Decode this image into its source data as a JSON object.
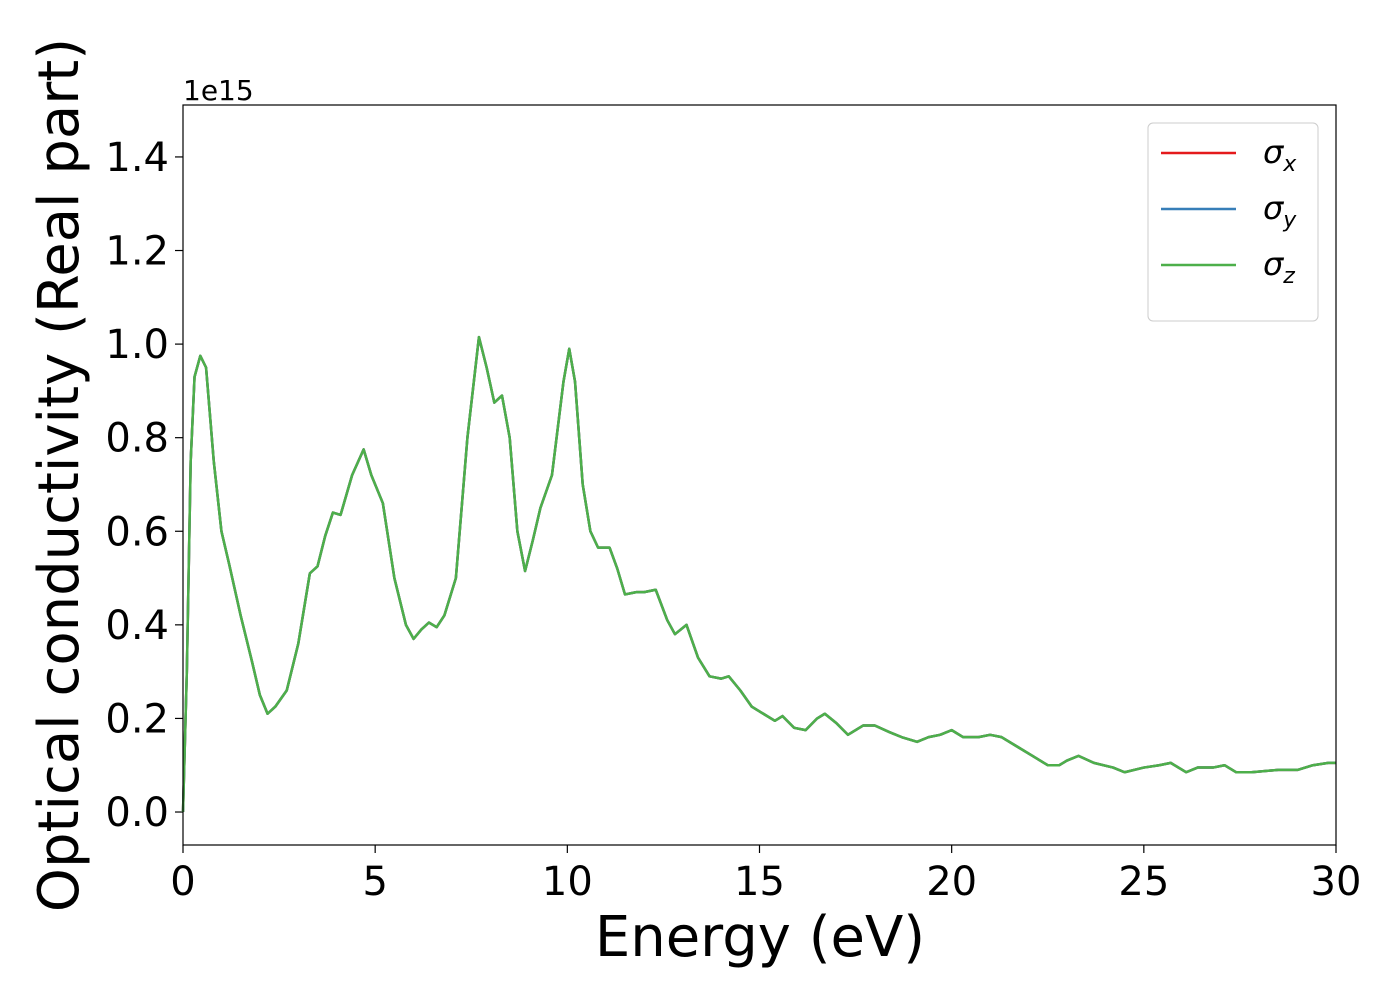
{
  "chart_data": {
    "type": "line",
    "xlabel": "Energy (eV)",
    "ylabel": "Optical conductivity (Real part)",
    "y_offset_text": "1e15",
    "x": [
      0,
      0.1,
      0.2,
      0.3,
      0.45,
      0.6,
      0.8,
      1.0,
      1.2,
      1.5,
      1.8,
      2.0,
      2.2,
      2.4,
      2.7,
      3.0,
      3.3,
      3.5,
      3.7,
      3.9,
      4.1,
      4.4,
      4.7,
      4.9,
      5.2,
      5.5,
      5.8,
      6.0,
      6.2,
      6.4,
      6.6,
      6.8,
      7.1,
      7.4,
      7.7,
      7.9,
      8.1,
      8.3,
      8.5,
      8.7,
      8.9,
      9.1,
      9.3,
      9.6,
      9.9,
      10.05,
      10.2,
      10.4,
      10.6,
      10.8,
      11.1,
      11.3,
      11.5,
      11.8,
      12.0,
      12.3,
      12.6,
      12.8,
      13.1,
      13.4,
      13.7,
      14.0,
      14.2,
      14.5,
      14.8,
      15.1,
      15.4,
      15.6,
      15.9,
      16.2,
      16.5,
      16.7,
      17.0,
      17.3,
      17.7,
      18.0,
      18.4,
      18.7,
      19.1,
      19.4,
      19.7,
      20.0,
      20.3,
      20.7,
      21.0,
      21.3,
      21.7,
      22.1,
      22.5,
      22.8,
      23.0,
      23.3,
      23.7,
      24.2,
      24.5,
      25.0,
      25.4,
      25.7,
      26.1,
      26.4,
      26.8,
      27.1,
      27.4,
      27.8,
      28.5,
      29.0,
      29.4,
      29.8,
      30.0
    ],
    "series": [
      {
        "name": "σx",
        "color": "#e41a1c",
        "values": [
          0,
          0.3,
          0.75,
          0.93,
          0.975,
          0.95,
          0.75,
          0.6,
          0.53,
          0.42,
          0.32,
          0.25,
          0.21,
          0.225,
          0.26,
          0.36,
          0.51,
          0.525,
          0.59,
          0.64,
          0.635,
          0.72,
          0.775,
          0.72,
          0.66,
          0.5,
          0.4,
          0.37,
          0.39,
          0.405,
          0.395,
          0.42,
          0.5,
          0.8,
          1.015,
          0.95,
          0.875,
          0.89,
          0.8,
          0.6,
          0.515,
          0.58,
          0.65,
          0.72,
          0.92,
          0.99,
          0.92,
          0.7,
          0.6,
          0.565,
          0.565,
          0.52,
          0.465,
          0.47,
          0.47,
          0.475,
          0.41,
          0.38,
          0.4,
          0.33,
          0.29,
          0.285,
          0.29,
          0.26,
          0.225,
          0.21,
          0.195,
          0.205,
          0.18,
          0.175,
          0.2,
          0.21,
          0.19,
          0.165,
          0.185,
          0.185,
          0.17,
          0.16,
          0.15,
          0.16,
          0.165,
          0.175,
          0.16,
          0.16,
          0.165,
          0.16,
          0.14,
          0.12,
          0.1,
          0.1,
          0.11,
          0.12,
          0.105,
          0.095,
          0.085,
          0.095,
          0.1,
          0.105,
          0.085,
          0.095,
          0.095,
          0.1,
          0.085,
          0.085,
          0.09,
          0.09,
          0.1,
          0.105,
          0.105
        ]
      },
      {
        "name": "σy",
        "color": "#377eb8",
        "values": [
          0,
          0.3,
          0.75,
          0.93,
          0.975,
          0.95,
          0.75,
          0.6,
          0.53,
          0.42,
          0.32,
          0.25,
          0.21,
          0.225,
          0.26,
          0.36,
          0.51,
          0.525,
          0.59,
          0.64,
          0.635,
          0.72,
          0.775,
          0.72,
          0.66,
          0.5,
          0.4,
          0.37,
          0.39,
          0.405,
          0.395,
          0.42,
          0.5,
          0.8,
          1.015,
          0.95,
          0.875,
          0.89,
          0.8,
          0.6,
          0.515,
          0.58,
          0.65,
          0.72,
          0.92,
          0.99,
          0.92,
          0.7,
          0.6,
          0.565,
          0.565,
          0.52,
          0.465,
          0.47,
          0.47,
          0.475,
          0.41,
          0.38,
          0.4,
          0.33,
          0.29,
          0.285,
          0.29,
          0.26,
          0.225,
          0.21,
          0.195,
          0.205,
          0.18,
          0.175,
          0.2,
          0.21,
          0.19,
          0.165,
          0.185,
          0.185,
          0.17,
          0.16,
          0.15,
          0.16,
          0.165,
          0.175,
          0.16,
          0.16,
          0.165,
          0.16,
          0.14,
          0.12,
          0.1,
          0.1,
          0.11,
          0.12,
          0.105,
          0.095,
          0.085,
          0.095,
          0.1,
          0.105,
          0.085,
          0.095,
          0.095,
          0.1,
          0.085,
          0.085,
          0.09,
          0.09,
          0.1,
          0.105,
          0.105
        ]
      },
      {
        "name": "σz",
        "color": "#4daf4a",
        "values": [
          0,
          0.3,
          0.75,
          0.93,
          0.975,
          0.95,
          0.75,
          0.6,
          0.53,
          0.42,
          0.32,
          0.25,
          0.21,
          0.225,
          0.26,
          0.36,
          0.51,
          0.525,
          0.59,
          0.64,
          0.635,
          0.72,
          0.775,
          0.72,
          0.66,
          0.5,
          0.4,
          0.37,
          0.39,
          0.405,
          0.395,
          0.42,
          0.5,
          0.8,
          1.015,
          0.95,
          0.875,
          0.89,
          0.8,
          0.6,
          0.515,
          0.58,
          0.65,
          0.72,
          0.92,
          0.99,
          0.92,
          0.7,
          0.6,
          0.565,
          0.565,
          0.52,
          0.465,
          0.47,
          0.47,
          0.475,
          0.41,
          0.38,
          0.4,
          0.33,
          0.29,
          0.285,
          0.29,
          0.26,
          0.225,
          0.21,
          0.195,
          0.205,
          0.18,
          0.175,
          0.2,
          0.21,
          0.19,
          0.165,
          0.185,
          0.185,
          0.17,
          0.16,
          0.15,
          0.16,
          0.165,
          0.175,
          0.16,
          0.16,
          0.165,
          0.16,
          0.14,
          0.12,
          0.1,
          0.1,
          0.11,
          0.12,
          0.105,
          0.095,
          0.085,
          0.095,
          0.1,
          0.105,
          0.085,
          0.095,
          0.095,
          0.1,
          0.085,
          0.085,
          0.09,
          0.09,
          0.1,
          0.105,
          0.105
        ]
      }
    ],
    "xlim": [
      0,
      30
    ],
    "xticks": [
      0,
      5,
      10,
      15,
      20,
      25,
      30
    ],
    "ylim": [
      -0.0705,
      1.511
    ],
    "yticks": [
      {
        "value": 0,
        "label": "0.0"
      },
      0.2,
      0.4,
      0.6,
      0.8,
      {
        "value": 1,
        "label": "1.0"
      },
      1.2,
      1.4
    ],
    "legend": "upper right",
    "grid": false
  }
}
